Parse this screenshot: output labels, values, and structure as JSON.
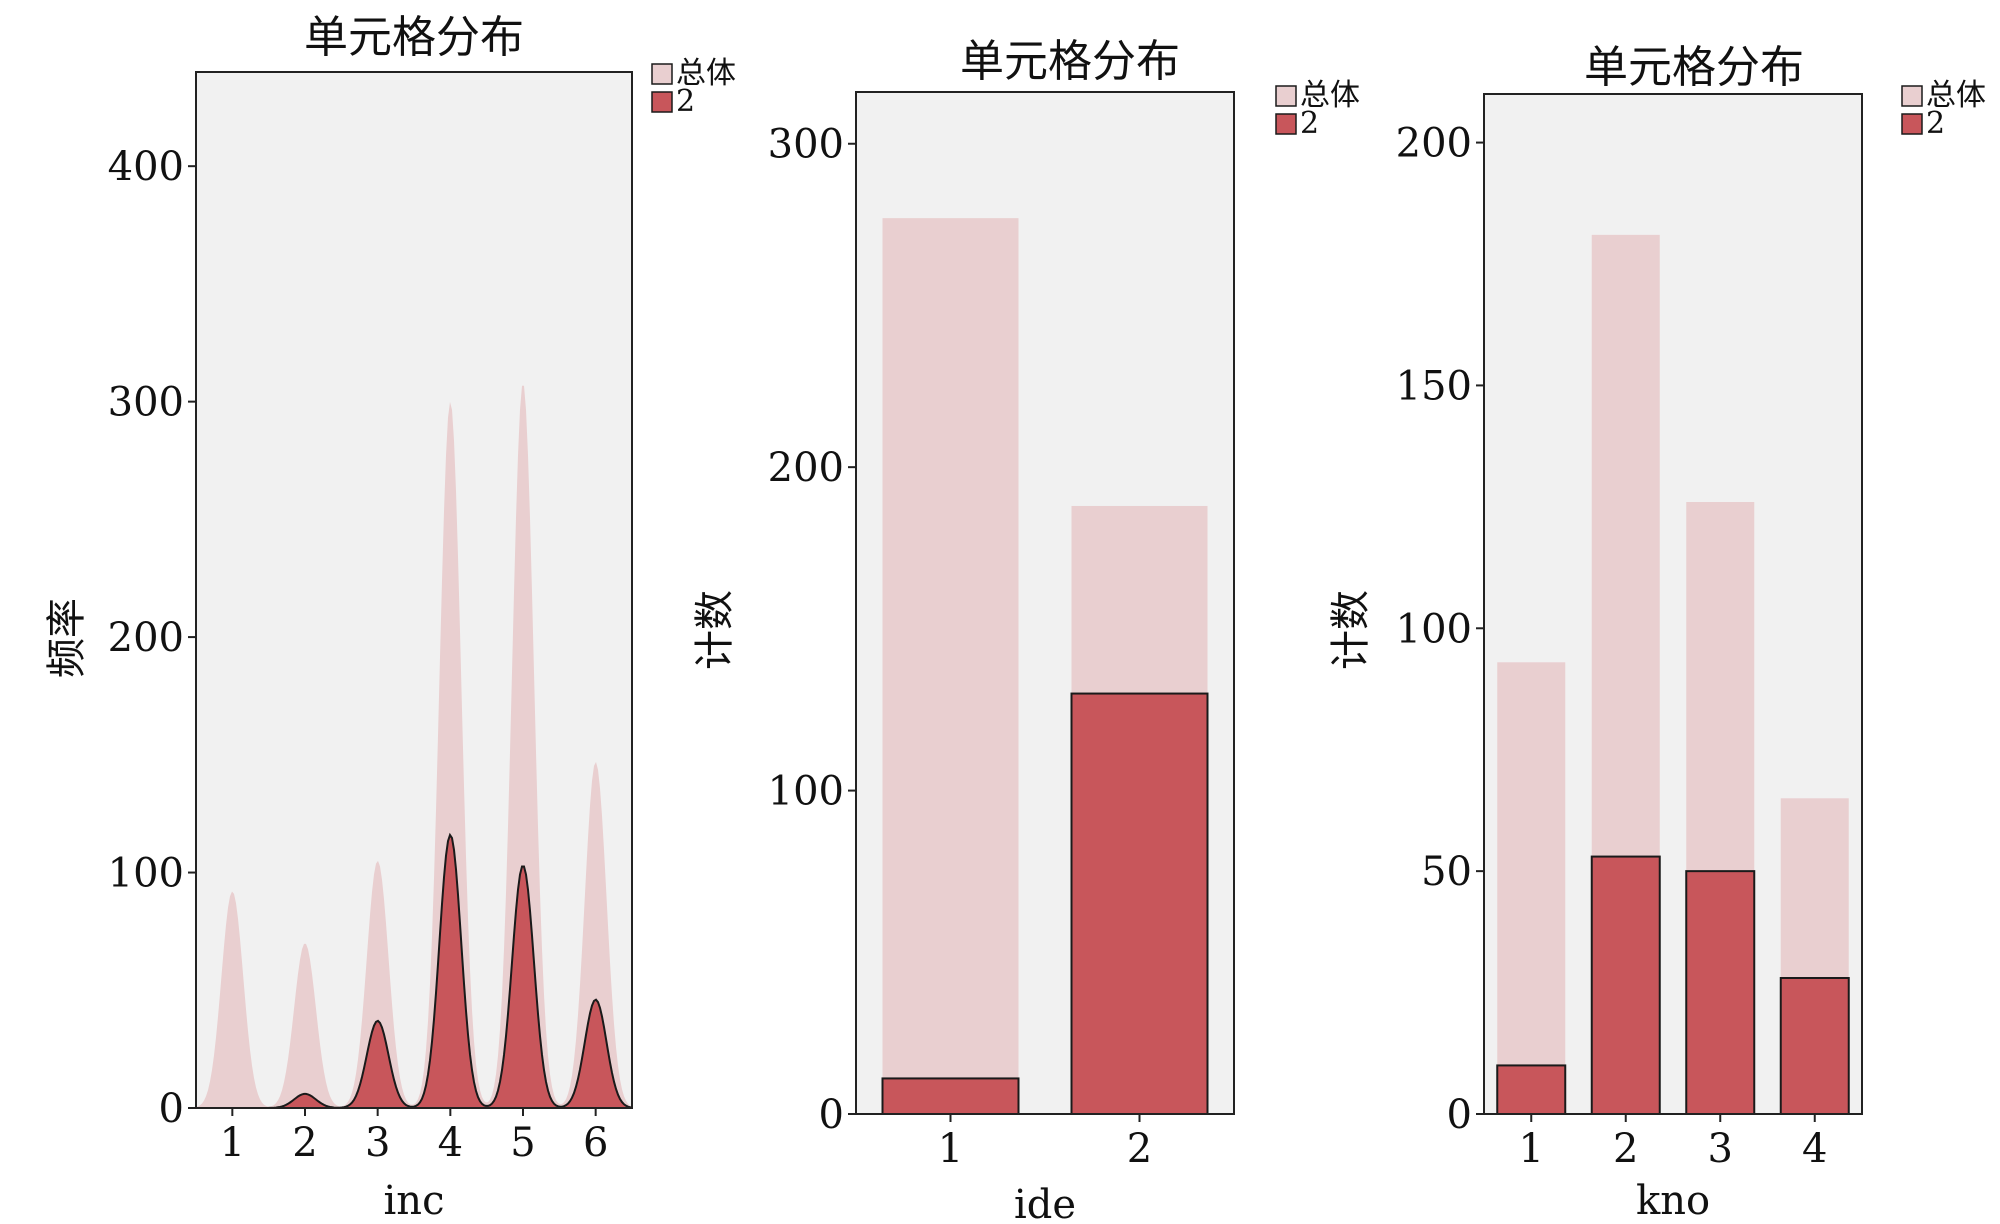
{
  "colors": {
    "overall_fill": "#e9cfd0",
    "group_fill": "#c8565b",
    "plot_background": "#f1f1f1",
    "outline": "#1a1a1a"
  },
  "chart_data": [
    {
      "type": "area",
      "title": "单元格分布",
      "xlabel": "inc",
      "ylabel": "频率",
      "categories": [
        "1",
        "2",
        "3",
        "4",
        "5",
        "6"
      ],
      "ylim": [
        0,
        440
      ],
      "yticks": [
        0,
        100,
        200,
        300,
        400
      ],
      "grid": false,
      "legend_position": "right-top",
      "series": [
        {
          "name": "总体",
          "values": [
            92,
            70,
            105,
            300,
            308,
            147
          ]
        },
        {
          "name": "2",
          "values": [
            0,
            6,
            37,
            116,
            103,
            46
          ]
        }
      ]
    },
    {
      "type": "bar",
      "title": "单元格分布",
      "xlabel": "ide",
      "ylabel": "计数",
      "categories": [
        "1",
        "2"
      ],
      "ylim": [
        0,
        316
      ],
      "yticks": [
        0,
        100,
        200,
        300
      ],
      "grid": false,
      "legend_position": "right-top",
      "series": [
        {
          "name": "总体",
          "values": [
            277,
            188
          ]
        },
        {
          "name": "2",
          "values": [
            11,
            130
          ]
        }
      ]
    },
    {
      "type": "bar",
      "title": "单元格分布",
      "xlabel": "kno",
      "ylabel": "计数",
      "categories": [
        "1",
        "2",
        "3",
        "4"
      ],
      "ylim": [
        0,
        210
      ],
      "yticks": [
        0,
        50,
        100,
        150,
        200
      ],
      "grid": false,
      "legend_position": "right-top",
      "series": [
        {
          "name": "总体",
          "values": [
            93,
            181,
            126,
            65
          ]
        },
        {
          "name": "2",
          "values": [
            10,
            53,
            50,
            28
          ]
        }
      ]
    }
  ]
}
